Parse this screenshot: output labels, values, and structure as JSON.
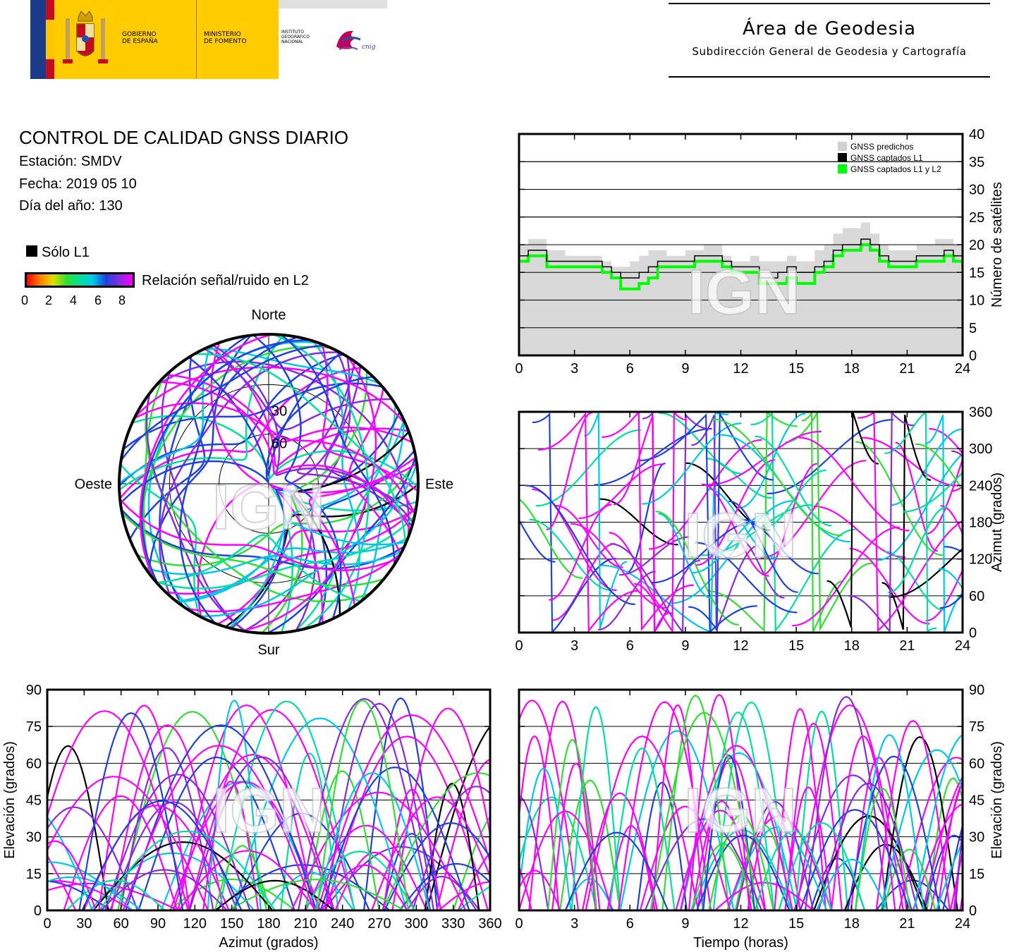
{
  "header": {
    "logo_gov_line1": "GOBIERNO",
    "logo_gov_line2": "DE ESPAÑA",
    "logo_min_line1": "MINISTERIO",
    "logo_min_line2": "DE FOMENTO",
    "logo_ign_line1": "INSTITUTO",
    "logo_ign_line2": "GEOGRÁFICO",
    "logo_ign_line3": "NACIONAL",
    "logo_cnig": "cnig",
    "area_title": "Área de Geodesia",
    "area_subtitle": "Subdirección General de Geodesia y Cartografía"
  },
  "report": {
    "title": "CONTROL DE CALIDAD GNSS DIARIO",
    "station": "Estación: SMDV",
    "date": "Fecha: 2019 05 10",
    "doy": "Día del año: 130"
  },
  "legend": {
    "l1_only": "Sólo L1",
    "snr_label": "Relación señal/ruido en L2",
    "snr_ticks": [
      "0",
      "2",
      "4",
      "6",
      "8"
    ]
  },
  "colors": {
    "magenta": "#ff00ff",
    "violet": "#8a2be2",
    "blue": "#2040e0",
    "cyan": "#00c8e8",
    "teal": "#00e0a0",
    "green": "#30e030",
    "yellow": "#e0e000",
    "orange": "#ff8000",
    "red": "#ff0000",
    "l1": "#000000",
    "predicted_fill": "#d9d9d9",
    "l1l2_line": "#00ff00"
  },
  "watermark": "IGN",
  "chart_data": [
    {
      "type": "line",
      "id": "satellites",
      "ylabel": "Número de satélites",
      "xlim": [
        0,
        24
      ],
      "ylim": [
        0,
        40
      ],
      "xticks": [
        "0",
        "3",
        "6",
        "9",
        "12",
        "15",
        "18",
        "21",
        "24"
      ],
      "yticks": [
        "0",
        "5",
        "10",
        "15",
        "20",
        "25",
        "30",
        "35",
        "40"
      ],
      "legend": [
        "GNSS predichos",
        "GNSS captados L1",
        "GNSS captados L1 y L2"
      ],
      "legend_position": "top-right",
      "x": [
        0,
        0.5,
        1,
        1.5,
        2,
        2.5,
        3,
        3.5,
        4,
        4.5,
        5,
        5.5,
        6,
        6.5,
        7,
        7.5,
        8,
        8.5,
        9,
        9.5,
        10,
        10.5,
        11,
        11.5,
        12,
        12.5,
        13,
        13.5,
        14,
        14.5,
        15,
        15.5,
        16,
        16.5,
        17,
        17.5,
        18,
        18.5,
        19,
        19.5,
        20,
        20.5,
        21,
        21.5,
        22,
        22.5,
        23,
        23.5,
        24
      ],
      "series": [
        {
          "name": "GNSS predichos",
          "values": [
            20,
            21,
            21,
            19,
            19,
            18,
            18,
            18,
            18,
            17,
            16,
            16,
            17,
            18,
            19,
            19,
            18,
            18,
            19,
            19,
            20,
            20,
            18,
            17,
            17,
            18,
            17,
            17,
            17,
            18,
            17,
            17,
            19,
            20,
            22,
            23,
            23,
            24,
            22,
            20,
            19,
            19,
            19,
            20,
            20,
            21,
            21,
            20,
            20
          ]
        },
        {
          "name": "GNSS captados L1",
          "values": [
            18,
            19,
            19,
            17,
            17,
            17,
            17,
            17,
            17,
            16,
            15,
            14,
            14,
            15,
            16,
            17,
            17,
            17,
            17,
            18,
            18,
            18,
            17,
            16,
            16,
            16,
            14,
            14,
            15,
            16,
            15,
            15,
            16,
            17,
            19,
            20,
            20,
            21,
            20,
            18,
            17,
            17,
            17,
            18,
            18,
            18,
            19,
            18,
            18
          ]
        },
        {
          "name": "GNSS captados L1 y L2",
          "values": [
            17,
            18,
            18,
            16,
            16,
            16,
            16,
            16,
            16,
            15,
            14,
            12,
            12,
            13,
            14,
            16,
            16,
            16,
            16,
            17,
            17,
            17,
            16,
            15,
            15,
            15,
            13,
            13,
            13,
            14,
            13,
            13,
            15,
            16,
            18,
            19,
            19,
            20,
            19,
            17,
            16,
            16,
            16,
            17,
            17,
            17,
            18,
            17,
            16
          ]
        }
      ]
    },
    {
      "type": "scatter",
      "id": "skyplot",
      "labels": {
        "north": "Norte",
        "south": "Sur",
        "east": "Este",
        "west": "Oeste"
      },
      "elevation_rings": [
        "30",
        "60"
      ]
    },
    {
      "type": "line",
      "id": "azimuth_vs_time",
      "ylabel": "Azimut (grados)",
      "xlim": [
        0,
        24
      ],
      "ylim": [
        0,
        360
      ],
      "xticks": [
        "0",
        "3",
        "6",
        "9",
        "12",
        "15",
        "18",
        "21",
        "24"
      ],
      "yticks": [
        "0",
        "60",
        "120",
        "180",
        "240",
        "300",
        "360"
      ]
    },
    {
      "type": "line",
      "id": "elevation_vs_azimuth",
      "xlabel": "Azimut (grados)",
      "ylabel": "Elevación (grados)",
      "xlim": [
        0,
        360
      ],
      "ylim": [
        0,
        90
      ],
      "xticks": [
        "0",
        "30",
        "60",
        "90",
        "120",
        "150",
        "180",
        "210",
        "240",
        "270",
        "300",
        "330",
        "360"
      ],
      "yticks": [
        "0",
        "15",
        "30",
        "45",
        "60",
        "75",
        "90"
      ]
    },
    {
      "type": "line",
      "id": "elevation_vs_time",
      "xlabel": "Tiempo (horas)",
      "ylabel": "Elevación (grados)",
      "xlim": [
        0,
        24
      ],
      "ylim": [
        0,
        90
      ],
      "xticks": [
        "0",
        "3",
        "6",
        "9",
        "12",
        "15",
        "18",
        "21",
        "24"
      ],
      "yticks": [
        "0",
        "15",
        "30",
        "45",
        "60",
        "75",
        "90"
      ]
    }
  ]
}
